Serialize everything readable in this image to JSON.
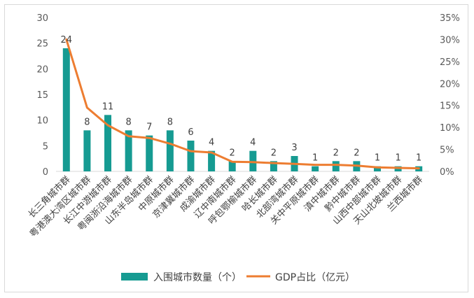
{
  "chart_data": {
    "type": "bar+line",
    "categories": [
      "长三角城市群",
      "粤港澳大湾区城市群",
      "长江中游城市群",
      "粤闽浙沿海城市群",
      "山东半岛城市群",
      "中原城市群",
      "京津冀城市群",
      "成渝城市群",
      "辽中南城市群",
      "呼包鄂榆城市群",
      "哈长城市群",
      "北部湾城市群",
      "关中平原城市群",
      "滇中城市群",
      "黔中城市群",
      "山西中部城市群",
      "天山北坡城市群",
      "兰西城市群"
    ],
    "series": [
      {
        "name": "入围城市数量（个）",
        "type": "bar",
        "axis": "left",
        "color": "#169b92",
        "values": [
          24,
          8,
          11,
          8,
          7,
          8,
          6,
          4,
          2,
          4,
          2,
          3,
          1,
          2,
          2,
          1,
          1,
          1
        ],
        "data_labels": [
          "24",
          "8",
          "11",
          "8",
          "7",
          "8",
          "6",
          "4",
          "2",
          "4",
          "2",
          "3",
          "1",
          "2",
          "2",
          "1",
          "1",
          "1"
        ]
      },
      {
        "name": "GDP占比（亿元）",
        "type": "line",
        "axis": "right",
        "color": "#ed7d31",
        "values": [
          30,
          14.5,
          10.5,
          8,
          7.6,
          6.3,
          4.6,
          4.3,
          2.2,
          2.1,
          1.9,
          1.7,
          1.5,
          1.5,
          1.3,
          0.9,
          0.8,
          0.7
        ]
      }
    ],
    "y_left": {
      "min": 0,
      "max": 30,
      "ticks": [
        "0",
        "5",
        "10",
        "15",
        "20",
        "25",
        "30"
      ]
    },
    "y_right": {
      "min": 0,
      "max": 35,
      "ticks": [
        "0%",
        "5%",
        "10%",
        "15%",
        "20%",
        "25%",
        "30%",
        "35%"
      ]
    },
    "legend": {
      "position": "bottom"
    },
    "grid": false
  }
}
